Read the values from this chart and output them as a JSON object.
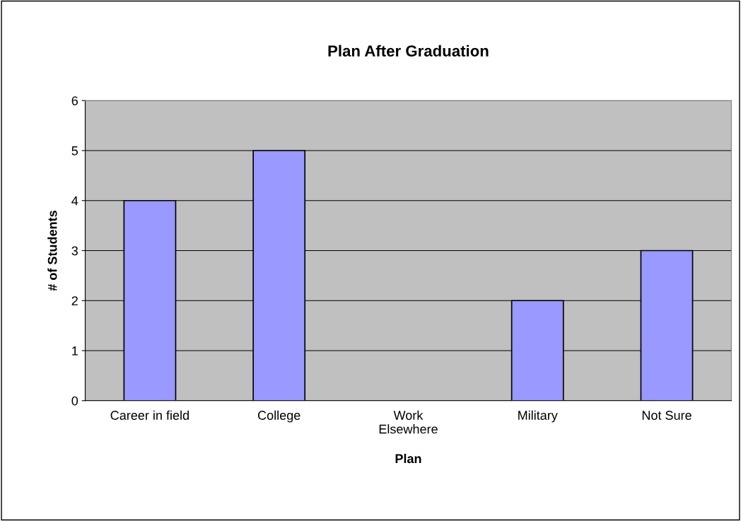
{
  "chart_data": {
    "type": "bar",
    "title": "Plan After Graduation",
    "xlabel": "Plan",
    "ylabel": "# of Students",
    "categories": [
      "Career in field",
      "College",
      "Work\nElsewhere",
      "Military",
      "Not Sure"
    ],
    "values": [
      4,
      5,
      0,
      2,
      3
    ],
    "color": "#9999ff",
    "ylim": [
      0,
      6
    ],
    "yticks": [
      0,
      1,
      2,
      3,
      4,
      5,
      6
    ],
    "grid": "y"
  }
}
